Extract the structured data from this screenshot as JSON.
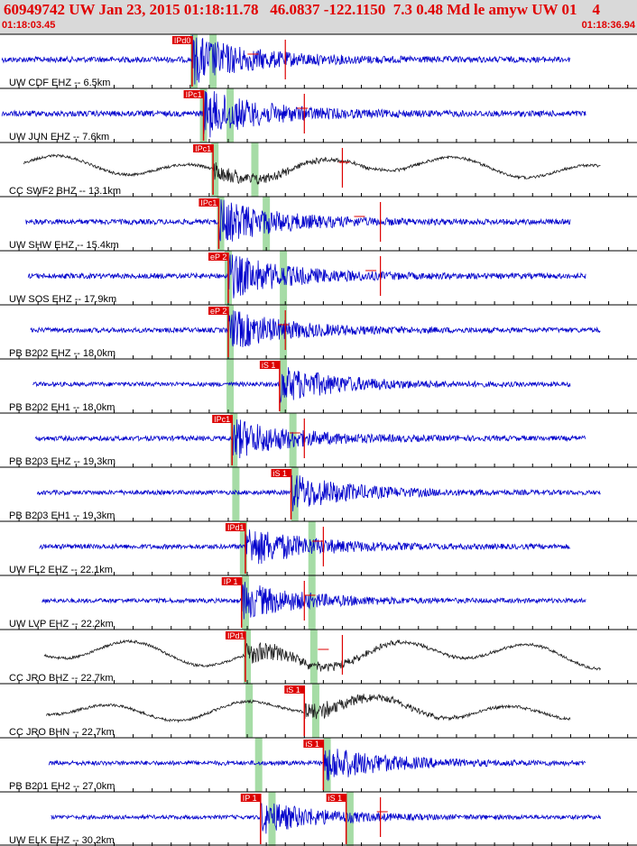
{
  "header": {
    "title": "60949742 UW Jan 23, 2015 01:18:11.78   46.0837 -122.1150  7.3 0.48 Md le amyw UW 01    4",
    "start_time": "01:18:03.45",
    "end_time": "01:18:36.94"
  },
  "colors": {
    "trace_short_period": "#0000cc",
    "trace_broadband": "#202020",
    "pick": "#dd0000",
    "window": "#a6dca6",
    "grid": "#000000"
  },
  "chart_data": {
    "type": "line",
    "time_range": [
      "01:18:03.45",
      "01:18:36.94"
    ],
    "traces": [
      {
        "label": "UW CDF EHZ -- 6.5km",
        "kind": "sp",
        "amp": 26,
        "picks": [
          {
            "tag": "IPd0",
            "t": 10.1
          }
        ],
        "coda_end": 15.0,
        "motion": 13.3
      },
      {
        "label": "UW JUN EHZ -- 7.6km",
        "kind": "sp",
        "amp": 26,
        "picks": [
          {
            "tag": "IPc1",
            "t": 10.7
          }
        ],
        "coda_end": 16.0,
        "motion": 15.9
      },
      {
        "label": "CC SWF2 BHZ -- 13.1km",
        "kind": "bb",
        "amp": 18,
        "picks": [
          {
            "tag": "IPc1",
            "t": 11.2
          }
        ],
        "coda_end": 18.0,
        "motion": 18.1
      },
      {
        "label": "UW SHW EHZ -- 15.4km",
        "kind": "sp",
        "amp": 24,
        "picks": [
          {
            "tag": "IPc1",
            "t": 11.5
          }
        ],
        "coda_end": 20.0,
        "motion": 18.9
      },
      {
        "label": "UW SOS EHZ -- 17.9km",
        "kind": "sp",
        "amp": 24,
        "picks": [
          {
            "tag": "eP 2",
            "t": 12.0
          }
        ],
        "coda_end": 20.0,
        "motion": 19.5
      },
      {
        "label": "PB B202 EHZ -- 18.0km",
        "kind": "sp",
        "amp": 22,
        "picks": [
          {
            "tag": "eP 2",
            "t": 12.0
          }
        ],
        "coda_end": 15.0,
        "motion": 14.9
      },
      {
        "label": "PB B202 EH1 -- 18.0km",
        "kind": "sp",
        "amp": 20,
        "picks": [
          {
            "tag": "iS 1",
            "t": 14.7
          }
        ],
        "coda_end": 0,
        "motion": 0
      },
      {
        "label": "PB B203 EHZ -- 19.3km",
        "kind": "sp",
        "amp": 22,
        "picks": [
          {
            "tag": "IPc1",
            "t": 12.2
          }
        ],
        "coda_end": 16.0,
        "motion": 15.5
      },
      {
        "label": "PB B203 EH1 -- 19.3km",
        "kind": "sp",
        "amp": 20,
        "picks": [
          {
            "tag": "iS 1",
            "t": 15.3
          }
        ],
        "coda_end": 0,
        "motion": 0
      },
      {
        "label": "UW FL2 EHZ -- 22.1km",
        "kind": "sp",
        "amp": 22,
        "picks": [
          {
            "tag": "IPd1",
            "t": 12.9
          }
        ],
        "coda_end": 17.0,
        "motion": 16.7
      },
      {
        "label": "UW LVP EHZ -- 22.2km",
        "kind": "sp",
        "amp": 20,
        "picks": [
          {
            "tag": "IP 1",
            "t": 12.7
          }
        ],
        "coda_end": 16.0,
        "motion": 16.3
      },
      {
        "label": "CC JRO BHZ -- 22.7km",
        "kind": "bb",
        "amp": 22,
        "picks": [
          {
            "tag": "IPd1",
            "t": 12.9
          }
        ],
        "coda_end": 18.0,
        "motion": 17.0
      },
      {
        "label": "CC JRO BHN -- 22.7km",
        "kind": "bb",
        "amp": 18,
        "picks": [
          {
            "tag": "iS 1",
            "t": 16.0
          }
        ],
        "coda_end": 0,
        "motion": 0
      },
      {
        "label": "PB B201 EH2 -- 27.0km",
        "kind": "sp",
        "amp": 20,
        "picks": [
          {
            "tag": "iS 1",
            "t": 17.0
          }
        ],
        "coda_end": 0,
        "motion": 0
      },
      {
        "label": "UW ELK EHZ -- 30.2km",
        "kind": "sp",
        "amp": 18,
        "picks": [
          {
            "tag": "IP 1",
            "t": 13.7
          },
          {
            "tag": "iS 1",
            "t": 18.2
          }
        ],
        "coda_end": 20.0,
        "motion": 20.1
      }
    ],
    "p_window_lines": [
      {
        "p": 10.2,
        "s": 11.2
      },
      {
        "p": 10.7,
        "s": 12.1
      },
      {
        "p": 11.3,
        "s": 13.4
      },
      {
        "p": 11.6,
        "s": 14.0
      },
      {
        "p": 12.0,
        "s": 14.9
      },
      {
        "p": 12.1,
        "s": 14.9
      },
      {
        "p": 12.1,
        "s": 14.9
      },
      {
        "p": 12.3,
        "s": 15.4
      },
      {
        "p": 12.4,
        "s": 15.5
      },
      {
        "p": 12.8,
        "s": 16.4
      },
      {
        "p": 12.9,
        "s": 16.4
      },
      {
        "p": 13.0,
        "s": 16.5
      },
      {
        "p": 13.1,
        "s": 16.6
      },
      {
        "p": 13.6,
        "s": 17.2
      },
      {
        "p": 14.3,
        "s": 18.4
      }
    ]
  }
}
